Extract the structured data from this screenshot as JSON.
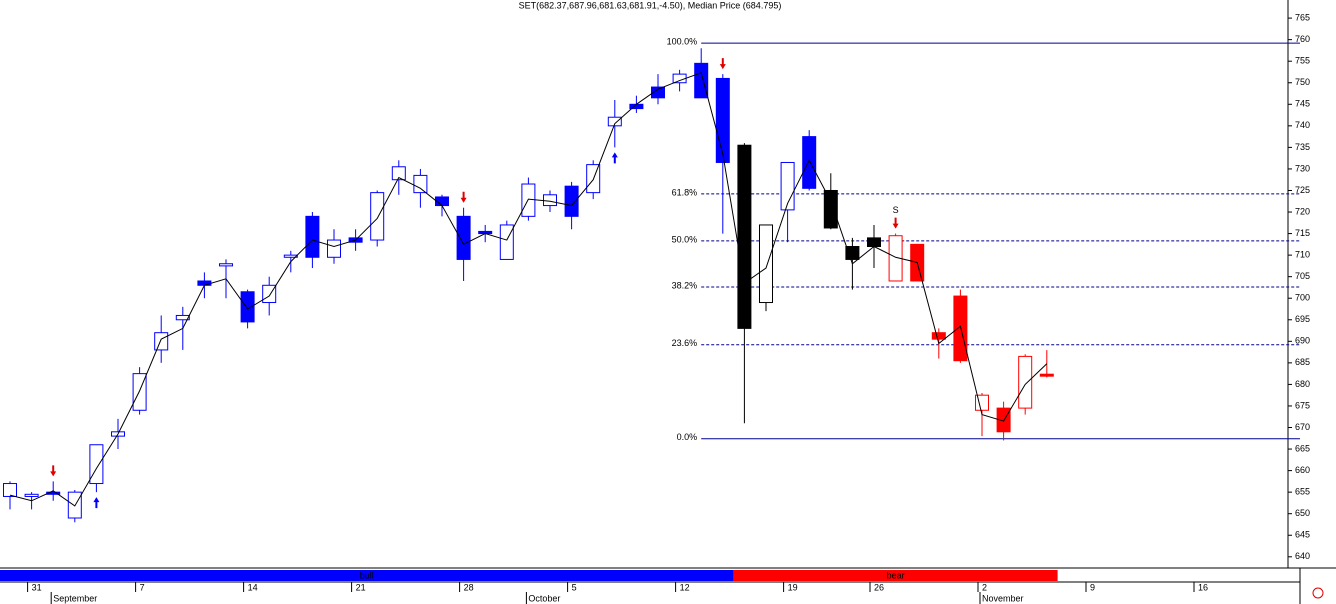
{
  "chart_data": {
    "type": "candlestick",
    "title": "SET(682.37,687.96,681.63,681.91,-4.50), Median Price (684.795)",
    "categories": [
      null,
      "31",
      null,
      null,
      null,
      null,
      "7",
      null,
      null,
      null,
      null,
      "14",
      null,
      null,
      null,
      null,
      "21",
      null,
      null,
      null,
      null,
      "28",
      null,
      null,
      null,
      null,
      "5",
      null,
      null,
      null,
      null,
      "12",
      null,
      null,
      null,
      null,
      "19",
      null,
      null,
      null,
      "26",
      null,
      null,
      null,
      null,
      "2",
      null,
      null,
      null,
      null,
      "9",
      null,
      null,
      null,
      null,
      "16",
      null,
      null,
      null,
      null
    ],
    "months": [
      null,
      null,
      "September",
      null,
      null,
      null,
      null,
      null,
      null,
      null,
      null,
      null,
      null,
      null,
      null,
      null,
      null,
      null,
      null,
      null,
      null,
      null,
      null,
      null,
      "October",
      null,
      null,
      null,
      null,
      null,
      null,
      null,
      null,
      null,
      null,
      null,
      null,
      null,
      null,
      null,
      null,
      null,
      null,
      null,
      null,
      "November",
      null,
      null,
      null,
      null,
      null,
      null,
      null,
      null,
      null,
      null,
      null,
      null,
      null,
      null
    ],
    "open": [
      654,
      654,
      655,
      649,
      657,
      668,
      674,
      688,
      695,
      704,
      707.5,
      701.5,
      699,
      709.5,
      719,
      709.5,
      714,
      713.5,
      727.5,
      724.5,
      723.5,
      719,
      715.5,
      709,
      719,
      721.5,
      726,
      724.5,
      740,
      745,
      749,
      750,
      754.5,
      751,
      735.5,
      699,
      720.5,
      737.5,
      725,
      712,
      714,
      704,
      712.5,
      692,
      700.5,
      674,
      674.5,
      674.5,
      682.37,
      null,
      null,
      null,
      null,
      null,
      null,
      null,
      null,
      null,
      null,
      null
    ],
    "high": [
      657.5,
      655,
      657.5,
      655.5,
      666,
      672,
      684,
      696,
      698,
      706,
      709,
      702,
      705,
      711,
      720,
      716,
      716,
      725,
      732,
      730,
      724,
      721,
      717,
      718,
      728,
      725,
      727,
      732,
      746,
      747,
      752,
      753,
      758,
      752,
      736,
      717,
      731.5,
      739,
      729,
      714,
      717,
      715,
      712.5,
      693,
      702,
      678,
      676,
      687,
      687.96,
      null,
      null,
      null,
      null,
      null,
      null,
      null,
      null,
      null,
      null,
      null
    ],
    "low": [
      651,
      651,
      653,
      648,
      655,
      665,
      673,
      685,
      688,
      700,
      700,
      693,
      696,
      706,
      707,
      708,
      711,
      712,
      724,
      721,
      719,
      704,
      713,
      709,
      718,
      720,
      716,
      723,
      735,
      743,
      745,
      748,
      747,
      715,
      671,
      697,
      713,
      725,
      716,
      702,
      707,
      704,
      704,
      686,
      685,
      668,
      667,
      673,
      681.63,
      null,
      null,
      null,
      null,
      null,
      null,
      null,
      null,
      null,
      null,
      null
    ],
    "close": [
      657,
      654.5,
      654.5,
      655,
      666,
      669,
      682.5,
      692,
      696,
      703,
      708,
      694.5,
      703,
      710,
      709.5,
      713.5,
      713,
      724.5,
      730.5,
      728.5,
      721.5,
      709,
      715,
      717,
      726.5,
      724,
      719,
      731,
      742,
      744,
      746.5,
      752,
      746.5,
      731.5,
      693,
      717,
      731.5,
      725.5,
      716.3,
      709,
      712,
      714.5,
      704,
      690.5,
      685.5,
      677.5,
      669,
      686.5,
      681.91,
      null,
      null,
      null,
      null,
      null,
      null,
      null,
      null,
      null,
      null,
      null
    ],
    "colors": [
      "#0000ff",
      "#0000ff",
      "#0000ff",
      "#0000ff",
      "#0000ff",
      "#0000ff",
      "#0000ff",
      "#0000ff",
      "#0000ff",
      "#0000ff",
      "#0000ff",
      "#0000ff",
      "#0000ff",
      "#0000ff",
      "#0000ff",
      "#0000ff",
      "#0000ff",
      "#0000ff",
      "#0000ff",
      "#0000ff",
      "#0000ff",
      "#0000ff",
      "#0000ff",
      "#0000ff",
      "#0000ff",
      "#0000ff",
      "#0000ff",
      "#0000ff",
      "#0000ff",
      "#0000ff",
      "#0000ff",
      "#0000ff",
      "#0000ff",
      "#0000ff",
      "#000000",
      "#000000",
      "#0000ff",
      "#0000ff",
      "#000000",
      "#000000",
      "#000000",
      "#ff0000",
      "#ff0000",
      "#ff0000",
      "#ff0000",
      "#ff0000",
      "#ff0000",
      "#ff0000",
      "#ff0000",
      null,
      null,
      null,
      null,
      null,
      null,
      null,
      null,
      null,
      null,
      null
    ],
    "median": [
      654.3,
      653,
      655.3,
      651.8,
      660.5,
      668.5,
      678.5,
      690.5,
      693,
      703,
      704.5,
      697.5,
      700.5,
      708.5,
      713.5,
      712,
      713.5,
      718.5,
      728,
      725.5,
      721.5,
      712.5,
      715,
      713.5,
      723,
      722.5,
      721.5,
      727.5,
      740.5,
      745,
      748.5,
      750.5,
      752.3,
      733.5,
      703.5,
      707,
      722,
      732,
      722.5,
      708,
      712,
      709.5,
      708.3,
      689.5,
      693.5,
      673,
      671.5,
      680,
      684.795,
      null,
      null,
      null,
      null,
      null,
      null,
      null,
      null,
      null,
      null,
      null
    ],
    "median_color": "#000000",
    "signals": [
      null,
      null,
      "down",
      null,
      "up",
      null,
      null,
      null,
      null,
      null,
      null,
      null,
      null,
      null,
      null,
      null,
      null,
      null,
      null,
      null,
      null,
      "down",
      null,
      null,
      null,
      null,
      null,
      null,
      "up",
      null,
      null,
      null,
      null,
      "down",
      null,
      null,
      null,
      null,
      null,
      null,
      null,
      "down",
      null,
      null,
      null,
      null,
      null,
      null,
      null,
      null,
      null,
      null,
      null,
      null,
      null,
      null,
      null,
      null,
      null,
      null
    ],
    "signal_labels": [
      null,
      null,
      null,
      null,
      null,
      null,
      null,
      null,
      null,
      null,
      null,
      null,
      null,
      null,
      null,
      null,
      null,
      null,
      null,
      null,
      null,
      null,
      null,
      null,
      null,
      null,
      null,
      null,
      null,
      null,
      null,
      null,
      null,
      null,
      null,
      null,
      null,
      null,
      null,
      null,
      null,
      "S",
      null,
      null,
      null,
      null,
      null,
      null,
      null,
      null,
      null,
      null,
      null,
      null,
      null,
      null,
      null,
      null,
      null,
      null
    ],
    "signal_colors": {
      "up": "#0000ff",
      "down": "#e00000"
    },
    "fib_levels": [
      {
        "value": 759.2,
        "label": "100.0%"
      },
      {
        "value": 724.2,
        "label": "61.8%"
      },
      {
        "value": 713.3,
        "label": "50.0%"
      },
      {
        "value": 702.6,
        "label": "38.2%"
      },
      {
        "value": 689.2,
        "label": "23.6%"
      },
      {
        "value": 667.4,
        "label": "0.0%"
      }
    ],
    "fib_color": "#00008b",
    "regimes": [
      {
        "label": "bull",
        "color": "#0000ff",
        "count": 34
      },
      {
        "label": "bear",
        "color": "#ff0000",
        "count": 15
      }
    ],
    "ylim": [
      637.4,
      769.2
    ],
    "yticks": [
      640,
      645,
      650,
      655,
      660,
      665,
      670,
      675,
      680,
      685,
      690,
      695,
      700,
      705,
      710,
      715,
      720,
      725,
      730,
      735,
      740,
      745,
      750,
      755,
      760,
      765
    ]
  }
}
